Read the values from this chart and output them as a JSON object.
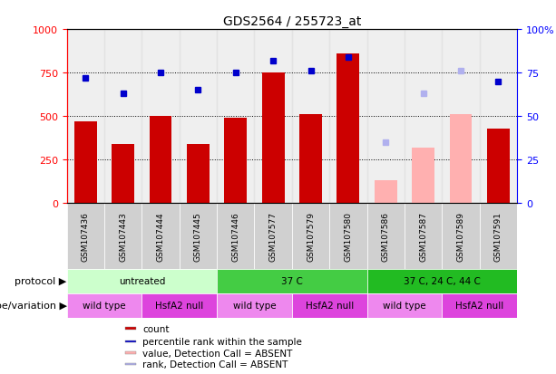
{
  "title": "GDS2564 / 255723_at",
  "samples": [
    "GSM107436",
    "GSM107443",
    "GSM107444",
    "GSM107445",
    "GSM107446",
    "GSM107577",
    "GSM107579",
    "GSM107580",
    "GSM107586",
    "GSM107587",
    "GSM107589",
    "GSM107591"
  ],
  "bar_values": [
    470,
    340,
    500,
    340,
    490,
    750,
    510,
    860,
    null,
    null,
    null,
    430
  ],
  "bar_absent_values": [
    null,
    null,
    null,
    null,
    null,
    null,
    null,
    null,
    130,
    320,
    510,
    null
  ],
  "rank_values": [
    72,
    63,
    75,
    65,
    75,
    82,
    76,
    84,
    null,
    null,
    null,
    70
  ],
  "rank_absent_values": [
    null,
    null,
    null,
    null,
    null,
    null,
    null,
    null,
    null,
    null,
    76,
    null
  ],
  "rank_absent_light": [
    null,
    null,
    null,
    null,
    null,
    null,
    null,
    null,
    35,
    63,
    null,
    null
  ],
  "bar_color": "#cc0000",
  "bar_absent_color": "#ffb0b0",
  "rank_color": "#0000cc",
  "rank_absent_color": "#b0b0ee",
  "ylim_left": [
    0,
    1000
  ],
  "ylim_right": [
    0,
    100
  ],
  "yticks_left": [
    0,
    250,
    500,
    750,
    1000
  ],
  "yticks_right": [
    0,
    25,
    50,
    75,
    100
  ],
  "protocols": [
    {
      "label": "untreated",
      "start": 0,
      "end": 4,
      "color": "#ccffcc"
    },
    {
      "label": "37 C",
      "start": 4,
      "end": 8,
      "color": "#44cc44"
    },
    {
      "label": "37 C, 24 C, 44 C",
      "start": 8,
      "end": 12,
      "color": "#22bb22"
    }
  ],
  "genotypes": [
    {
      "label": "wild type",
      "start": 0,
      "end": 2,
      "color": "#ee88ee"
    },
    {
      "label": "HsfA2 null",
      "start": 2,
      "end": 4,
      "color": "#dd44dd"
    },
    {
      "label": "wild type",
      "start": 4,
      "end": 6,
      "color": "#ee88ee"
    },
    {
      "label": "HsfA2 null",
      "start": 6,
      "end": 8,
      "color": "#dd44dd"
    },
    {
      "label": "wild type",
      "start": 8,
      "end": 10,
      "color": "#ee88ee"
    },
    {
      "label": "HsfA2 null",
      "start": 10,
      "end": 12,
      "color": "#dd44dd"
    }
  ],
  "legend_items": [
    {
      "label": "count",
      "color": "#cc0000"
    },
    {
      "label": "percentile rank within the sample",
      "color": "#0000cc"
    },
    {
      "label": "value, Detection Call = ABSENT",
      "color": "#ffb0b0"
    },
    {
      "label": "rank, Detection Call = ABSENT",
      "color": "#b0b0ee"
    }
  ],
  "sample_bg_color": "#cccccc",
  "label_area_color": "#ffffff"
}
